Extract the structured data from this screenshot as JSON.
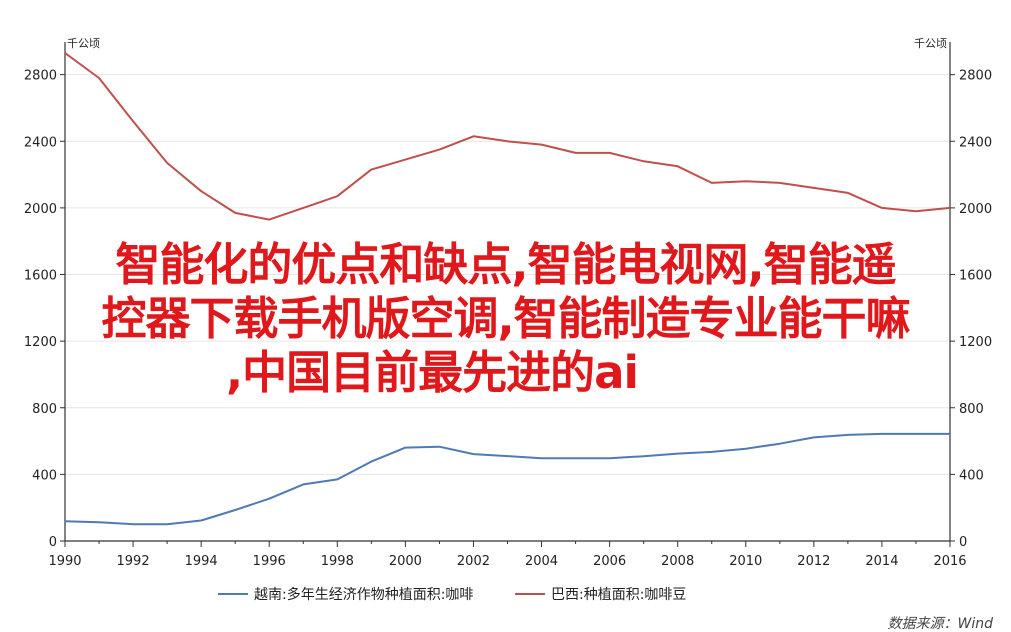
{
  "chart_data": {
    "type": "line",
    "unit_left": "千公顷",
    "unit_right": "千公顷",
    "x_ticks": [
      "1990",
      "1992",
      "1994",
      "1996",
      "1998",
      "2000",
      "2002",
      "2004",
      "2006",
      "2008",
      "2010",
      "2012",
      "2014",
      "2016"
    ],
    "y_ticks": [
      "0",
      "400",
      "800",
      "1200",
      "1600",
      "2000",
      "2400",
      "2800"
    ],
    "xlim": [
      1990,
      2016
    ],
    "ylim": [
      0,
      2960
    ],
    "grid": true,
    "legend_position": "bottom",
    "x": [
      1990,
      1991,
      1992,
      1993,
      1994,
      1995,
      1996,
      1997,
      1998,
      1999,
      2000,
      2001,
      2002,
      2003,
      2004,
      2005,
      2006,
      2007,
      2008,
      2009,
      2010,
      2011,
      2012,
      2013,
      2014,
      2015,
      2016
    ],
    "series": [
      {
        "name": "越南:多年生经济作物种植面积:咖啡",
        "color": "#4e7ab5",
        "values": [
          119,
          113,
          101,
          101,
          123,
          186,
          254,
          340,
          370,
          477,
          561,
          566,
          522,
          510,
          497,
          497,
          497,
          509,
          525,
          535,
          554,
          584,
          622,
          637,
          643,
          643,
          643
        ]
      },
      {
        "name": "巴西:种植面积:咖啡豆",
        "color": "#c0504d",
        "values": [
          2930,
          2780,
          2520,
          2270,
          2100,
          1970,
          1930,
          2000,
          2070,
          2230,
          2290,
          2350,
          2430,
          2400,
          2380,
          2330,
          2330,
          2280,
          2250,
          2150,
          2160,
          2150,
          2120,
          2090,
          2000,
          1980,
          2000
        ]
      }
    ]
  },
  "source_label": "数据来源：Wind",
  "overlay_text": {
    "line1": "智能化的优点和缺点,智能电视网,智能遥",
    "line2": "控器下载手机版空调,智能制造专业能干嘛",
    "line3": ",中国目前最先进的ai"
  }
}
